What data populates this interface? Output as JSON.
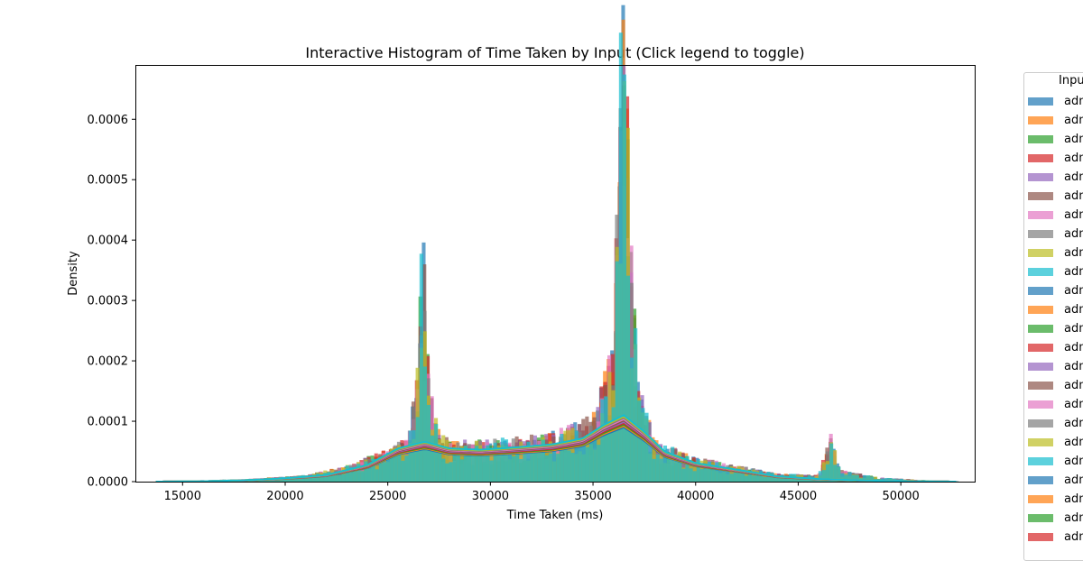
{
  "chart_data": {
    "type": "histogram",
    "title": "Interactive Histogram of Time Taken by Input (Click legend to toggle)",
    "xlabel": "Time Taken (ms)",
    "ylabel": "Density",
    "xlim": [
      12700,
      53600
    ],
    "ylim": [
      0,
      0.00069
    ],
    "xticks": [
      15000,
      20000,
      25000,
      30000,
      35000,
      40000,
      45000,
      50000
    ],
    "xtick_labels": [
      "15000",
      "20000",
      "25000",
      "30000",
      "35000",
      "40000",
      "45000",
      "50000"
    ],
    "yticks": [
      0,
      0.0001,
      0.0002,
      0.0003,
      0.0004,
      0.0005,
      0.0006
    ],
    "ytick_labels": [
      "0.0000",
      "0.0001",
      "0.0002",
      "0.0003",
      "0.0004",
      "0.0005",
      "0.0006"
    ],
    "grid": false,
    "kde": true,
    "legend": {
      "title": "Input",
      "placement": "outside right, clipped"
    },
    "series_colors": [
      "#1f77b4",
      "#ff7f0e",
      "#2ca02c",
      "#d62728",
      "#9467bd",
      "#8c564b",
      "#e377c2",
      "#7f7f7f",
      "#bcbd22",
      "#17becf"
    ],
    "series": [
      {
        "name": "adm"
      },
      {
        "name": "adm"
      },
      {
        "name": "adm"
      },
      {
        "name": "adm"
      },
      {
        "name": "adm"
      },
      {
        "name": "adm"
      },
      {
        "name": "adm"
      },
      {
        "name": "adm"
      },
      {
        "name": "adm"
      },
      {
        "name": "adm"
      },
      {
        "name": "adm"
      },
      {
        "name": "adm"
      },
      {
        "name": "adm"
      },
      {
        "name": "adm"
      },
      {
        "name": "adm"
      },
      {
        "name": "adm"
      },
      {
        "name": "adm"
      },
      {
        "name": "adm"
      },
      {
        "name": "adm"
      },
      {
        "name": "adm"
      },
      {
        "name": "adm"
      },
      {
        "name": "adm"
      },
      {
        "name": "adm"
      },
      {
        "name": "adm"
      }
    ],
    "density_profile": {
      "x": [
        13700,
        18000,
        21000,
        23000,
        25000,
        26000,
        26500,
        26700,
        27000,
        27500,
        28000,
        30000,
        33000,
        35000,
        36000,
        36400,
        36600,
        36800,
        37200,
        38000,
        40000,
        42000,
        44000,
        46000,
        46600,
        47000,
        49000,
        51000,
        52700
      ],
      "y": [
        5e-07,
        3e-06,
        8e-06,
        2e-05,
        4e-05,
        6e-05,
        0.00015,
        0.00033,
        0.00012,
        6e-05,
        5e-05,
        5e-05,
        6e-05,
        8e-05,
        0.00017,
        0.00058,
        0.00065,
        0.00035,
        0.00012,
        5e-05,
        3e-05,
        2e-05,
        1e-05,
        8e-06,
        6e-05,
        1.5e-05,
        5e-06,
        2e-06,
        5e-07
      ]
    },
    "kde_curve": {
      "x": [
        13700,
        16000,
        18000,
        20000,
        22000,
        24000,
        25500,
        26800,
        28000,
        29500,
        31000,
        33000,
        34500,
        35500,
        36500,
        37500,
        38500,
        40000,
        42000,
        44000,
        46000,
        48000,
        50000,
        52700
      ],
      "y": [
        0,
        5e-07,
        2e-06,
        5e-06,
        1e-05,
        2.5e-05,
        5e-05,
        6e-05,
        5e-05,
        4.8e-05,
        5.1e-05,
        5.6e-05,
        6.5e-05,
        8.5e-05,
        0.0001,
        7.5e-05,
        4.5e-05,
        2.8e-05,
        1.8e-05,
        8e-06,
        4e-06,
        2e-06,
        5e-07,
        0
      ]
    }
  }
}
